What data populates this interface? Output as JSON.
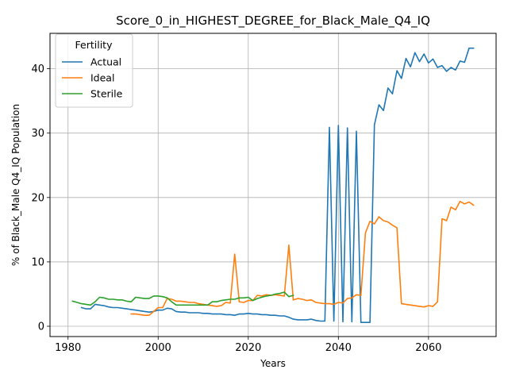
{
  "chart_data": {
    "type": "line",
    "title": "Score_0_in_HIGHEST_DEGREE_for_Black_Male_Q4_IQ",
    "xlabel": "Years",
    "ylabel": "% of Black_Male Q4_IQ Population",
    "xlim": [
      1976,
      2075
    ],
    "ylim": [
      -1.6,
      45.5
    ],
    "xticks": [
      1980,
      2000,
      2020,
      2040,
      2060
    ],
    "yticks": [
      0,
      10,
      20,
      30,
      40
    ],
    "grid": true,
    "legend": {
      "title": "Fertility",
      "placement": "top-left"
    },
    "series": [
      {
        "name": "Actual",
        "color": "#1f77b4",
        "points": [
          [
            1983,
            2.9
          ],
          [
            1984,
            2.7
          ],
          [
            1985,
            2.7
          ],
          [
            1986,
            3.4
          ],
          [
            1987,
            3.3
          ],
          [
            1988,
            3.2
          ],
          [
            1989,
            3.0
          ],
          [
            1990,
            2.9
          ],
          [
            1991,
            2.9
          ],
          [
            1992,
            2.8
          ],
          [
            1993,
            2.7
          ],
          [
            1994,
            2.6
          ],
          [
            1995,
            2.5
          ],
          [
            1996,
            2.4
          ],
          [
            1997,
            2.3
          ],
          [
            1998,
            2.2
          ],
          [
            1999,
            2.3
          ],
          [
            2000,
            2.5
          ],
          [
            2001,
            2.5
          ],
          [
            2002,
            2.8
          ],
          [
            2003,
            2.7
          ],
          [
            2004,
            2.3
          ],
          [
            2005,
            2.2
          ],
          [
            2006,
            2.2
          ],
          [
            2007,
            2.1
          ],
          [
            2008,
            2.1
          ],
          [
            2009,
            2.1
          ],
          [
            2010,
            2.0
          ],
          [
            2011,
            2.0
          ],
          [
            2012,
            1.9
          ],
          [
            2013,
            1.9
          ],
          [
            2014,
            1.9
          ],
          [
            2015,
            1.8
          ],
          [
            2016,
            1.8
          ],
          [
            2017,
            1.7
          ],
          [
            2018,
            1.9
          ],
          [
            2019,
            1.9
          ],
          [
            2020,
            2.0
          ],
          [
            2021,
            1.9
          ],
          [
            2022,
            1.9
          ],
          [
            2023,
            1.8
          ],
          [
            2024,
            1.8
          ],
          [
            2025,
            1.7
          ],
          [
            2026,
            1.7
          ],
          [
            2027,
            1.6
          ],
          [
            2028,
            1.6
          ],
          [
            2029,
            1.4
          ],
          [
            2030,
            1.1
          ],
          [
            2031,
            1.0
          ],
          [
            2032,
            1.0
          ],
          [
            2033,
            1.0
          ],
          [
            2034,
            1.1
          ],
          [
            2035,
            0.9
          ],
          [
            2036,
            0.8
          ],
          [
            2037,
            0.8
          ],
          [
            2038,
            30.9
          ],
          [
            2039,
            0.8
          ],
          [
            2040,
            31.2
          ],
          [
            2041,
            0.7
          ],
          [
            2042,
            30.8
          ],
          [
            2043,
            0.7
          ],
          [
            2044,
            30.3
          ],
          [
            2045,
            0.6
          ],
          [
            2046,
            0.6
          ],
          [
            2047,
            0.6
          ],
          [
            2048,
            31.3
          ],
          [
            2049,
            34.4
          ],
          [
            2050,
            33.5
          ],
          [
            2051,
            37.0
          ],
          [
            2052,
            36.1
          ],
          [
            2053,
            39.7
          ],
          [
            2054,
            38.5
          ],
          [
            2055,
            41.6
          ],
          [
            2056,
            40.3
          ],
          [
            2057,
            42.5
          ],
          [
            2058,
            41.1
          ],
          [
            2059,
            42.3
          ],
          [
            2060,
            40.9
          ],
          [
            2061,
            41.5
          ],
          [
            2062,
            40.2
          ],
          [
            2063,
            40.5
          ],
          [
            2064,
            39.6
          ],
          [
            2065,
            40.2
          ],
          [
            2066,
            39.8
          ],
          [
            2067,
            41.2
          ],
          [
            2068,
            41.0
          ],
          [
            2069,
            43.2
          ],
          [
            2070,
            43.2
          ]
        ]
      },
      {
        "name": "Ideal",
        "color": "#ff7f0e",
        "points": [
          [
            1994,
            1.9
          ],
          [
            1995,
            1.9
          ],
          [
            1996,
            1.8
          ],
          [
            1997,
            1.7
          ],
          [
            1998,
            1.7
          ],
          [
            1999,
            2.3
          ],
          [
            2000,
            2.9
          ],
          [
            2001,
            2.9
          ],
          [
            2002,
            4.3
          ],
          [
            2003,
            4.2
          ],
          [
            2004,
            3.9
          ],
          [
            2005,
            3.9
          ],
          [
            2006,
            3.8
          ],
          [
            2007,
            3.7
          ],
          [
            2008,
            3.7
          ],
          [
            2009,
            3.5
          ],
          [
            2010,
            3.4
          ],
          [
            2011,
            3.3
          ],
          [
            2012,
            3.2
          ],
          [
            2013,
            3.1
          ],
          [
            2014,
            3.2
          ],
          [
            2015,
            3.7
          ],
          [
            2016,
            3.6
          ],
          [
            2017,
            11.2
          ],
          [
            2018,
            3.8
          ],
          [
            2019,
            3.7
          ],
          [
            2020,
            4.0
          ],
          [
            2021,
            4.0
          ],
          [
            2022,
            4.8
          ],
          [
            2023,
            4.7
          ],
          [
            2024,
            4.9
          ],
          [
            2025,
            4.8
          ],
          [
            2026,
            4.9
          ],
          [
            2027,
            4.8
          ],
          [
            2028,
            4.7
          ],
          [
            2029,
            12.6
          ],
          [
            2030,
            4.1
          ],
          [
            2031,
            4.3
          ],
          [
            2032,
            4.2
          ],
          [
            2033,
            4.0
          ],
          [
            2034,
            4.1
          ],
          [
            2035,
            3.7
          ],
          [
            2036,
            3.6
          ],
          [
            2037,
            3.5
          ],
          [
            2038,
            3.5
          ],
          [
            2039,
            3.4
          ],
          [
            2040,
            3.7
          ],
          [
            2041,
            3.6
          ],
          [
            2042,
            4.3
          ],
          [
            2043,
            4.4
          ],
          [
            2044,
            4.9
          ],
          [
            2045,
            4.8
          ],
          [
            2046,
            14.5
          ],
          [
            2047,
            16.3
          ],
          [
            2048,
            15.9
          ],
          [
            2049,
            17.0
          ],
          [
            2050,
            16.4
          ],
          [
            2051,
            16.2
          ],
          [
            2052,
            15.7
          ],
          [
            2053,
            15.3
          ],
          [
            2054,
            3.5
          ],
          [
            2055,
            3.4
          ],
          [
            2056,
            3.3
          ],
          [
            2057,
            3.2
          ],
          [
            2058,
            3.1
          ],
          [
            2059,
            3.0
          ],
          [
            2060,
            3.2
          ],
          [
            2061,
            3.1
          ],
          [
            2062,
            3.8
          ],
          [
            2063,
            16.7
          ],
          [
            2064,
            16.4
          ],
          [
            2065,
            18.5
          ],
          [
            2066,
            18.1
          ],
          [
            2067,
            19.4
          ],
          [
            2068,
            19.0
          ],
          [
            2069,
            19.3
          ],
          [
            2070,
            18.8
          ]
        ]
      },
      {
        "name": "Sterile",
        "color": "#2ca02c",
        "points": [
          [
            1981,
            3.9
          ],
          [
            1982,
            3.7
          ],
          [
            1983,
            3.5
          ],
          [
            1984,
            3.4
          ],
          [
            1985,
            3.3
          ],
          [
            1986,
            3.8
          ],
          [
            1987,
            4.5
          ],
          [
            1988,
            4.4
          ],
          [
            1989,
            4.2
          ],
          [
            1990,
            4.2
          ],
          [
            1991,
            4.1
          ],
          [
            1992,
            4.1
          ],
          [
            1993,
            3.9
          ],
          [
            1994,
            3.8
          ],
          [
            1995,
            4.5
          ],
          [
            1996,
            4.4
          ],
          [
            1997,
            4.3
          ],
          [
            1998,
            4.3
          ],
          [
            1999,
            4.7
          ],
          [
            2000,
            4.7
          ],
          [
            2001,
            4.6
          ],
          [
            2002,
            4.4
          ],
          [
            2003,
            3.8
          ],
          [
            2004,
            3.3
          ],
          [
            2005,
            3.3
          ],
          [
            2006,
            3.3
          ],
          [
            2007,
            3.3
          ],
          [
            2008,
            3.3
          ],
          [
            2009,
            3.3
          ],
          [
            2010,
            3.3
          ],
          [
            2011,
            3.3
          ],
          [
            2012,
            3.8
          ],
          [
            2013,
            3.8
          ],
          [
            2014,
            4.0
          ],
          [
            2015,
            4.1
          ],
          [
            2016,
            4.2
          ],
          [
            2017,
            4.2
          ],
          [
            2018,
            4.4
          ],
          [
            2019,
            4.4
          ],
          [
            2020,
            4.5
          ],
          [
            2021,
            4.0
          ],
          [
            2022,
            4.3
          ],
          [
            2023,
            4.5
          ],
          [
            2024,
            4.7
          ],
          [
            2025,
            4.8
          ],
          [
            2026,
            5.0
          ],
          [
            2027,
            5.1
          ],
          [
            2028,
            5.3
          ],
          [
            2029,
            4.6
          ],
          [
            2030,
            4.8
          ]
        ]
      }
    ]
  }
}
